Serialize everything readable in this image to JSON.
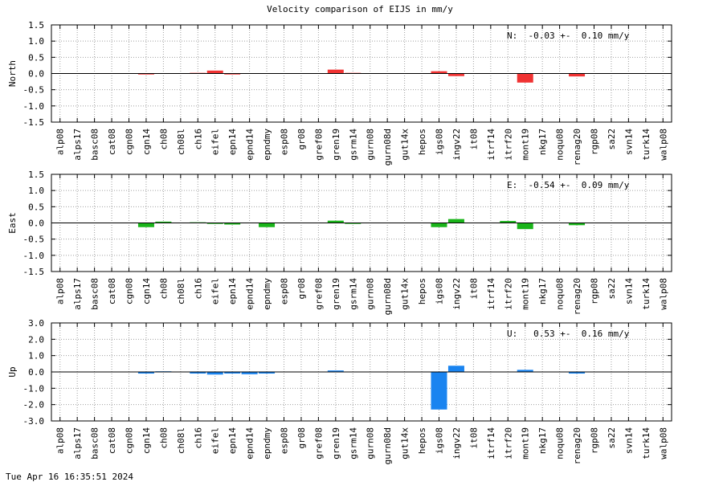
{
  "title": "Velocity comparison of EIJS in mm/y",
  "timestamp": "Tue Apr 16 16:35:51 2024",
  "stations": [
    "alp08",
    "alps17",
    "basc08",
    "cat08",
    "cgn08",
    "cgn14",
    "ch08",
    "ch08l",
    "ch16",
    "eifel",
    "epn14",
    "epnd14",
    "epndmy",
    "esp08",
    "gr08",
    "gref08",
    "gren19",
    "gsrm14",
    "gurn08",
    "gurn08d",
    "gut14x",
    "hepos",
    "igs08",
    "ingv22",
    "it08",
    "itrf14",
    "itrf20",
    "mont19",
    "nkg17",
    "noqu08",
    "renag20",
    "rgp08",
    "sa22",
    "svn14",
    "turk14",
    "walp08"
  ],
  "chart_data": [
    {
      "type": "bar",
      "component": "North",
      "ylabel": "North",
      "summary": "N:  -0.03 +-  0.10 mm/y",
      "color": "#f03232",
      "ylim": [
        -1.5,
        1.5
      ],
      "yticks": [
        1.5,
        1.0,
        0.5,
        0.0,
        -0.5,
        -1.0,
        -1.5
      ],
      "ytick_labels": [
        "1.5",
        "1.0",
        "0.5",
        "0.0",
        "-0.5",
        "-1.0",
        "-1.5"
      ],
      "values": [
        0,
        0,
        0,
        0,
        0,
        -0.03,
        0,
        0,
        0.02,
        0.09,
        -0.03,
        0,
        0,
        0,
        0,
        0,
        0.12,
        0.02,
        0,
        0,
        0,
        0,
        0.07,
        -0.08,
        0,
        0,
        0,
        -0.28,
        0,
        0,
        -0.09,
        0,
        0,
        0,
        0,
        0
      ]
    },
    {
      "type": "bar",
      "component": "East",
      "ylabel": "East",
      "summary": "E:  -0.54 +-  0.09 mm/y",
      "color": "#1ab41a",
      "ylim": [
        -1.5,
        1.5
      ],
      "yticks": [
        1.5,
        1.0,
        0.5,
        0.0,
        -0.5,
        -1.0,
        -1.5
      ],
      "ytick_labels": [
        "1.5",
        "1.0",
        "0.5",
        "0.0",
        "-0.5",
        "-1.0",
        "-1.5"
      ],
      "values": [
        0,
        0,
        0,
        0,
        0,
        -0.13,
        0.04,
        0,
        0.02,
        -0.03,
        -0.05,
        0,
        -0.13,
        0,
        0,
        0,
        0.07,
        -0.03,
        0,
        0,
        0,
        0,
        -0.13,
        0.12,
        0,
        0,
        0.06,
        -0.19,
        0,
        0,
        -0.07,
        0,
        0,
        0,
        0,
        0
      ]
    },
    {
      "type": "bar",
      "component": "Up",
      "ylabel": "Up",
      "summary": "U:   0.53 +-  0.16 mm/y",
      "color": "#1a84f0",
      "ylim": [
        -3.0,
        3.0
      ],
      "yticks": [
        3.0,
        2.0,
        1.0,
        0.0,
        -1.0,
        -2.0,
        -3.0
      ],
      "ytick_labels": [
        "3.0",
        "2.0",
        "1.0",
        "0.0",
        "-1.0",
        "-2.0",
        "-3.0"
      ],
      "values": [
        0,
        0,
        0,
        0,
        0,
        -0.1,
        0.04,
        0,
        -0.1,
        -0.16,
        -0.1,
        -0.14,
        -0.1,
        0,
        0,
        0,
        0.09,
        0,
        0,
        0,
        0,
        0,
        -2.3,
        0.38,
        0,
        0,
        0,
        0.13,
        0,
        0,
        -0.1,
        0,
        0,
        0,
        0,
        0
      ]
    }
  ]
}
